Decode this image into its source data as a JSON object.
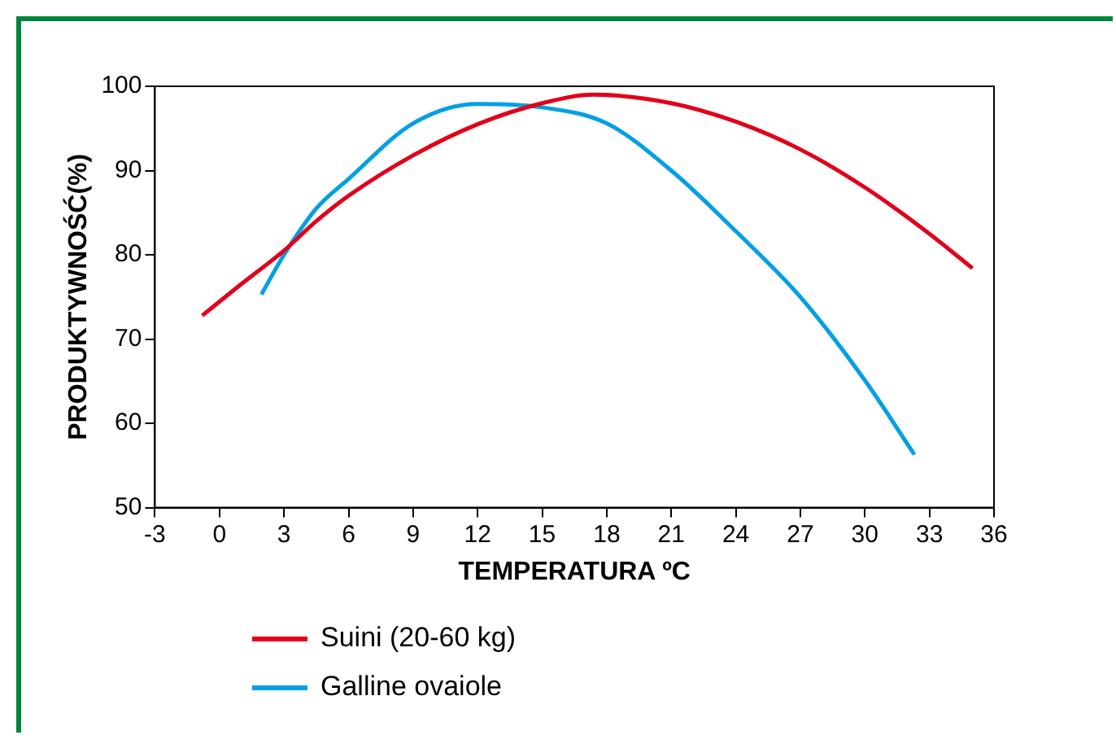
{
  "chart_data": {
    "type": "line",
    "xlabel": "TEMPERATURA ºC",
    "ylabel": "PRODUKTYWNOŚĆ(%)",
    "xlim": [
      -3,
      36
    ],
    "xticks": [
      -3,
      0,
      3,
      6,
      9,
      12,
      15,
      18,
      21,
      24,
      27,
      30,
      33,
      36
    ],
    "ylim": [
      50,
      100
    ],
    "yticks": [
      50,
      60,
      70,
      80,
      90,
      100
    ],
    "grid": false,
    "legend": "bottom",
    "marker": "none",
    "line_style": "solid",
    "series": [
      {
        "name": "Suini (20-60 kg)",
        "color": "#e2001a",
        "x": [
          -0.8,
          1,
          3,
          4.5,
          6,
          9,
          12,
          15,
          17.4,
          21,
          24,
          27,
          30,
          33,
          35
        ],
        "values": [
          72.8,
          76.5,
          80.5,
          84,
          87,
          91.8,
          95.5,
          98,
          99,
          98,
          95.8,
          92.5,
          88,
          82.5,
          78.4
        ]
      },
      {
        "name": "Galline ovaiole",
        "color": "#00a0e3",
        "x": [
          1.95,
          3,
          4.5,
          6,
          9,
          12,
          15,
          18,
          21,
          24,
          27,
          30,
          32.3
        ],
        "values": [
          75.3,
          80,
          85.5,
          89,
          95.6,
          97.9,
          97.5,
          95.6,
          90,
          82.8,
          75,
          65.1,
          56.3
        ]
      }
    ]
  }
}
